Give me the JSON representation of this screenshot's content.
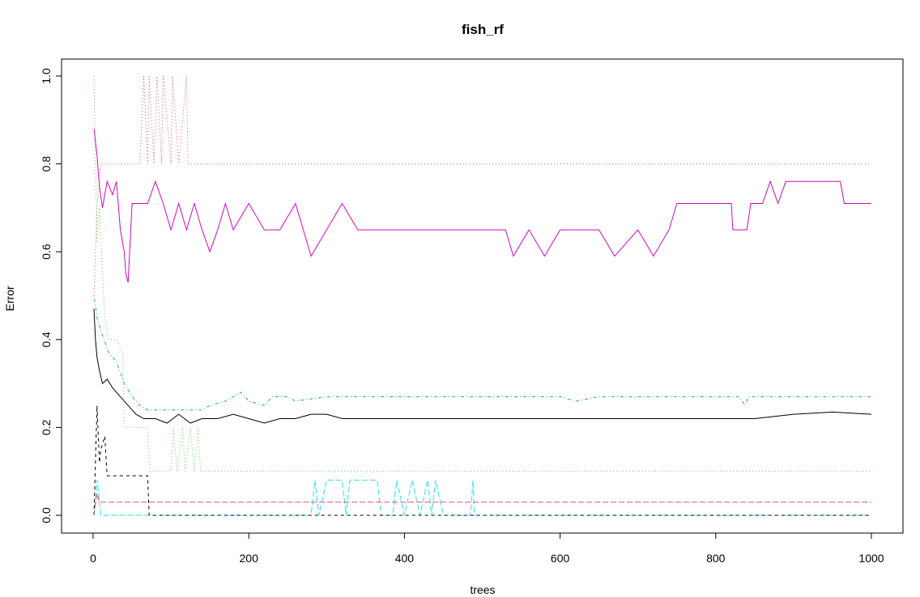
{
  "chart_data": {
    "type": "line",
    "title": "fish_rf",
    "xlabel": "trees",
    "ylabel": "Error",
    "xlim": [
      0,
      1000
    ],
    "ylim": [
      0,
      1.0
    ],
    "xticks": [
      "0",
      "200",
      "400",
      "600",
      "800",
      "1000"
    ],
    "yticks": [
      "0.0",
      "0.2",
      "0.4",
      "0.6",
      "0.8",
      "1.0"
    ],
    "grid": false,
    "legend": "none",
    "series": [
      {
        "color": "#000000",
        "dash": "solid",
        "points": [
          [
            1,
            0.47
          ],
          [
            3,
            0.4
          ],
          [
            5,
            0.36
          ],
          [
            8,
            0.33
          ],
          [
            12,
            0.3
          ],
          [
            18,
            0.31
          ],
          [
            25,
            0.29
          ],
          [
            35,
            0.27
          ],
          [
            45,
            0.25
          ],
          [
            55,
            0.23
          ],
          [
            65,
            0.22
          ],
          [
            80,
            0.22
          ],
          [
            95,
            0.21
          ],
          [
            110,
            0.23
          ],
          [
            125,
            0.21
          ],
          [
            140,
            0.22
          ],
          [
            160,
            0.22
          ],
          [
            180,
            0.23
          ],
          [
            200,
            0.22
          ],
          [
            220,
            0.21
          ],
          [
            240,
            0.22
          ],
          [
            260,
            0.22
          ],
          [
            280,
            0.23
          ],
          [
            300,
            0.23
          ],
          [
            320,
            0.22
          ],
          [
            350,
            0.22
          ],
          [
            400,
            0.22
          ],
          [
            450,
            0.22
          ],
          [
            500,
            0.22
          ],
          [
            550,
            0.22
          ],
          [
            600,
            0.22
          ],
          [
            650,
            0.22
          ],
          [
            700,
            0.22
          ],
          [
            750,
            0.22
          ],
          [
            800,
            0.22
          ],
          [
            850,
            0.22
          ],
          [
            900,
            0.23
          ],
          [
            950,
            0.235
          ],
          [
            1000,
            0.23
          ]
        ]
      },
      {
        "color": "#DF536B",
        "dash": "dot",
        "points": [
          [
            1,
            0.5
          ],
          [
            5,
            0.7
          ],
          [
            10,
            0.8
          ],
          [
            60,
            0.8
          ],
          [
            65,
            1.0
          ],
          [
            70,
            0.8
          ],
          [
            72,
            1.0
          ],
          [
            78,
            0.8
          ],
          [
            82,
            1.0
          ],
          [
            88,
            0.8
          ],
          [
            90,
            1.0
          ],
          [
            100,
            0.8
          ],
          [
            102,
            1.0
          ],
          [
            110,
            0.8
          ],
          [
            120,
            1.0
          ],
          [
            122,
            0.8
          ],
          [
            1000,
            0.8
          ]
        ]
      },
      {
        "color": "#61D04F",
        "dash": "dot",
        "points": [
          [
            1,
            1.0
          ],
          [
            3,
            0.8
          ],
          [
            5,
            0.62
          ],
          [
            8,
            0.7
          ],
          [
            12,
            0.55
          ],
          [
            15,
            0.45
          ],
          [
            20,
            0.4
          ],
          [
            30,
            0.4
          ],
          [
            38,
            0.37
          ],
          [
            40,
            0.2
          ],
          [
            70,
            0.2
          ],
          [
            73,
            0.1
          ],
          [
            100,
            0.1
          ],
          [
            103,
            0.2
          ],
          [
            108,
            0.1
          ],
          [
            115,
            0.2
          ],
          [
            118,
            0.1
          ],
          [
            125,
            0.2
          ],
          [
            130,
            0.1
          ],
          [
            135,
            0.2
          ],
          [
            138,
            0.1
          ],
          [
            1000,
            0.1
          ]
        ]
      },
      {
        "color": "#2297E6",
        "dash": "dashdot",
        "points": [
          [
            1,
            0.5
          ],
          [
            5,
            0.45
          ],
          [
            10,
            0.42
          ],
          [
            20,
            0.37
          ],
          [
            30,
            0.35
          ],
          [
            40,
            0.3
          ],
          [
            50,
            0.27
          ],
          [
            60,
            0.25
          ],
          [
            70,
            0.24
          ],
          [
            80,
            0.24
          ],
          [
            100,
            0.24
          ],
          [
            120,
            0.24
          ],
          [
            140,
            0.24
          ],
          [
            150,
            0.25
          ],
          [
            170,
            0.26
          ],
          [
            190,
            0.28
          ],
          [
            200,
            0.26
          ],
          [
            220,
            0.25
          ],
          [
            230,
            0.27
          ],
          [
            250,
            0.27
          ],
          [
            260,
            0.26
          ],
          [
            300,
            0.27
          ],
          [
            330,
            0.27
          ],
          [
            600,
            0.27
          ],
          [
            620,
            0.26
          ],
          [
            650,
            0.27
          ],
          [
            830,
            0.27
          ],
          [
            838,
            0.25
          ],
          [
            842,
            0.27
          ],
          [
            1000,
            0.27
          ]
        ]
      },
      {
        "color": "#28E2E5",
        "dash": "longdash",
        "points": [
          [
            1,
            0.0
          ],
          [
            5,
            0.08
          ],
          [
            10,
            0.0
          ],
          [
            280,
            0.0
          ],
          [
            285,
            0.08
          ],
          [
            290,
            0.0
          ],
          [
            300,
            0.08
          ],
          [
            320,
            0.08
          ],
          [
            325,
            0.0
          ],
          [
            330,
            0.08
          ],
          [
            365,
            0.08
          ],
          [
            370,
            0.0
          ],
          [
            385,
            0.0
          ],
          [
            390,
            0.08
          ],
          [
            400,
            0.0
          ],
          [
            410,
            0.08
          ],
          [
            420,
            0.0
          ],
          [
            430,
            0.08
          ],
          [
            435,
            0.0
          ],
          [
            440,
            0.08
          ],
          [
            450,
            0.0
          ],
          [
            485,
            0.0
          ],
          [
            488,
            0.08
          ],
          [
            490,
            0.0
          ],
          [
            1000,
            0.0
          ]
        ]
      },
      {
        "color": "#CD0BBC",
        "dash": "solid",
        "points": [
          [
            1,
            0.88
          ],
          [
            5,
            0.82
          ],
          [
            8,
            0.75
          ],
          [
            12,
            0.7
          ],
          [
            18,
            0.76
          ],
          [
            25,
            0.73
          ],
          [
            30,
            0.76
          ],
          [
            35,
            0.65
          ],
          [
            40,
            0.6
          ],
          [
            42,
            0.55
          ],
          [
            45,
            0.53
          ],
          [
            50,
            0.71
          ],
          [
            60,
            0.71
          ],
          [
            70,
            0.71
          ],
          [
            80,
            0.76
          ],
          [
            90,
            0.71
          ],
          [
            100,
            0.65
          ],
          [
            110,
            0.71
          ],
          [
            120,
            0.65
          ],
          [
            130,
            0.71
          ],
          [
            140,
            0.65
          ],
          [
            150,
            0.6
          ],
          [
            160,
            0.65
          ],
          [
            170,
            0.71
          ],
          [
            180,
            0.65
          ],
          [
            200,
            0.71
          ],
          [
            220,
            0.65
          ],
          [
            240,
            0.65
          ],
          [
            260,
            0.71
          ],
          [
            270,
            0.65
          ],
          [
            280,
            0.59
          ],
          [
            300,
            0.65
          ],
          [
            320,
            0.71
          ],
          [
            340,
            0.65
          ],
          [
            400,
            0.65
          ],
          [
            500,
            0.65
          ],
          [
            530,
            0.65
          ],
          [
            540,
            0.59
          ],
          [
            560,
            0.65
          ],
          [
            580,
            0.59
          ],
          [
            600,
            0.65
          ],
          [
            650,
            0.65
          ],
          [
            670,
            0.59
          ],
          [
            700,
            0.65
          ],
          [
            720,
            0.59
          ],
          [
            740,
            0.65
          ],
          [
            750,
            0.71
          ],
          [
            820,
            0.71
          ],
          [
            822,
            0.65
          ],
          [
            840,
            0.65
          ],
          [
            845,
            0.71
          ],
          [
            860,
            0.71
          ],
          [
            870,
            0.76
          ],
          [
            880,
            0.71
          ],
          [
            890,
            0.76
          ],
          [
            960,
            0.76
          ],
          [
            965,
            0.71
          ],
          [
            1000,
            0.71
          ]
        ]
      },
      {
        "color": "#000000",
        "dash": "dash",
        "points": [
          [
            1,
            0.0
          ],
          [
            5,
            0.25
          ],
          [
            8,
            0.12
          ],
          [
            10,
            0.15
          ],
          [
            15,
            0.18
          ],
          [
            18,
            0.09
          ],
          [
            70,
            0.09
          ],
          [
            72,
            0.0
          ],
          [
            1000,
            0.0
          ]
        ]
      },
      {
        "color": "#DF536B",
        "dash": "longdash",
        "points": [
          [
            1,
            0.0
          ],
          [
            5,
            0.05
          ],
          [
            8,
            0.03
          ],
          [
            1000,
            0.03
          ]
        ]
      }
    ]
  }
}
